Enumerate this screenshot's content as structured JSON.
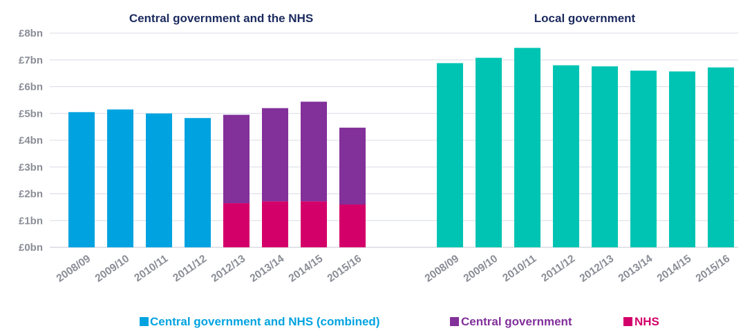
{
  "chart_data": [
    {
      "type": "bar",
      "stacked": true,
      "title": "Central government and the NHS",
      "categories": [
        "2008/09",
        "2009/10",
        "2010/11",
        "2011/12",
        "2012/13",
        "2013/14",
        "2014/15",
        "2015/16"
      ],
      "series": [
        {
          "name": "Central government and NHS (combined)",
          "color": "#00a3e0",
          "values": [
            5.05,
            5.15,
            5.0,
            4.83,
            null,
            null,
            null,
            null
          ]
        },
        {
          "name": "NHS",
          "color": "#d4006a",
          "values": [
            null,
            null,
            null,
            null,
            1.65,
            1.72,
            1.72,
            1.6
          ]
        },
        {
          "name": "Central government",
          "color": "#82309a",
          "values": [
            null,
            null,
            null,
            null,
            3.3,
            3.48,
            3.72,
            2.87
          ]
        }
      ],
      "y_tick_labels": [
        "£0bn",
        "£1bn",
        "£2bn",
        "£3bn",
        "£4bn",
        "£5bn",
        "£6bn",
        "£7bn",
        "£8bn"
      ],
      "ylim": [
        0,
        8
      ],
      "grid": true
    },
    {
      "type": "bar",
      "title": "Local government",
      "categories": [
        "2008/09",
        "2009/10",
        "2010/11",
        "2011/12",
        "2012/13",
        "2013/14",
        "2014/15",
        "2015/16"
      ],
      "series": [
        {
          "name": "",
          "color": "#00c4b3",
          "values": [
            6.88,
            7.08,
            7.45,
            6.8,
            6.76,
            6.6,
            6.57,
            6.72
          ]
        }
      ],
      "ylim": [
        0,
        8
      ],
      "grid": true
    }
  ],
  "legend": {
    "position": "bottom-center",
    "items": [
      {
        "label": "Central government and NHS (combined)",
        "color": "#00a3e0"
      },
      {
        "label": "Central government",
        "color": "#82309a"
      },
      {
        "label": "NHS",
        "color": "#d4006a"
      }
    ]
  }
}
